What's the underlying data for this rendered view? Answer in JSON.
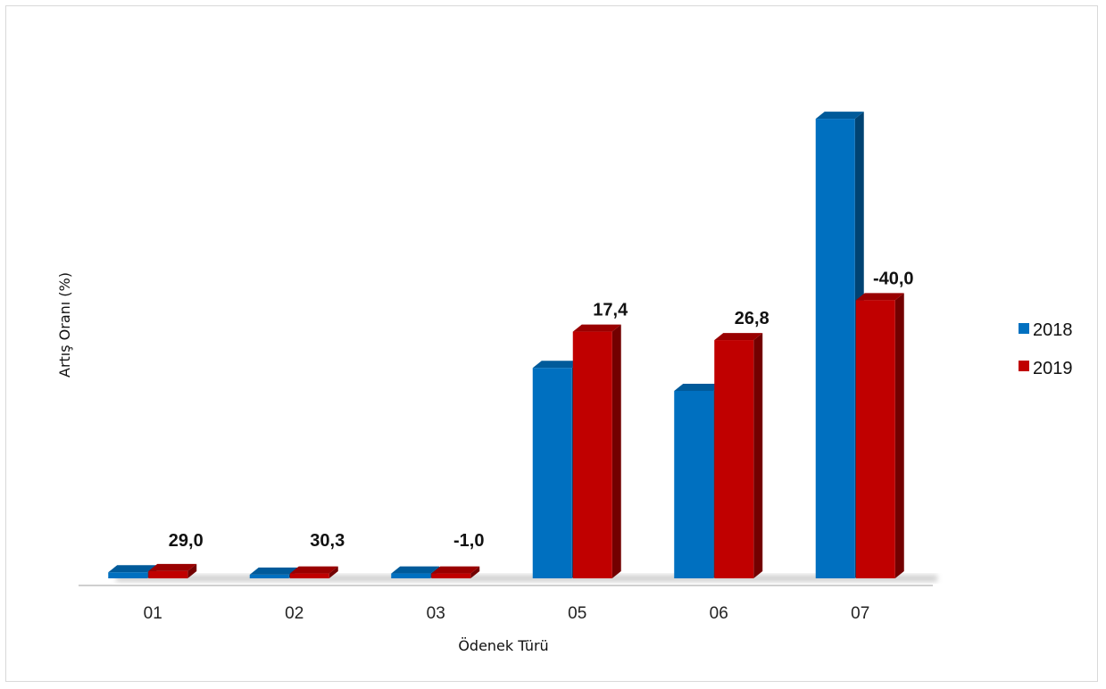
{
  "chart_data": {
    "type": "bar",
    "categories": [
      "01",
      "02",
      "03",
      "05",
      "06",
      "07"
    ],
    "series": [
      {
        "name": "2018",
        "color": "#0070c0",
        "values": [
          0.5,
          0.3,
          0.4,
          17.4,
          15.5,
          38.0
        ]
      },
      {
        "name": "2019",
        "color": "#c00000",
        "values": [
          0.6,
          0.4,
          0.4,
          20.4,
          19.7,
          23.0
        ]
      }
    ],
    "data_labels": [
      "29,0",
      "30,3",
      "-1,0",
      "17,4",
      "26,8",
      "-40,0"
    ],
    "xlabel": "Ödenek Türü",
    "ylabel": "Artış Oranı (%)",
    "ylim": [
      0,
      40
    ],
    "grid": false,
    "legend_position": "right",
    "style": "3d-bars"
  }
}
